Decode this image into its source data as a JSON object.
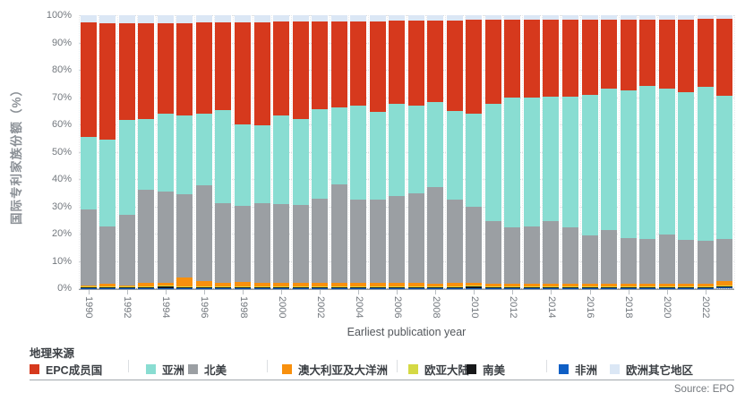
{
  "colors": {
    "epc_red": "#d6391d",
    "asia_teal": "#89ddd2",
    "north_america_gray": "#9b9fa3",
    "oceania_orange": "#f8900d",
    "eurasia_yellow": "#d5d944",
    "south_america_black": "#17181a",
    "africa_blue": "#0f5fc5",
    "other_europe_pale": "#dbe7f5",
    "axis_text": "#73787e",
    "grid": "#d9dcdf"
  },
  "y_axis": {
    "title": "国际专利家族份额（%）",
    "ticks": [
      "0%",
      "10%",
      "20%",
      "30%",
      "40%",
      "50%",
      "60%",
      "70%",
      "80%",
      "90%",
      "100%"
    ]
  },
  "x_axis": {
    "title": "Earliest publication year",
    "tick_years": [
      1990,
      1992,
      1994,
      1996,
      1998,
      2000,
      2002,
      2004,
      2006,
      2008,
      2010,
      2012,
      2014,
      2016,
      2018,
      2020,
      2022
    ]
  },
  "legend": {
    "title": "地理来源",
    "items": [
      {
        "label": "EPC成员国",
        "color": "#d6391d"
      },
      {
        "label": "亚洲",
        "color": "#89ddd2"
      },
      {
        "label": "北美",
        "color": "#9b9fa3"
      },
      {
        "label": "澳大利亚及大洋洲",
        "color": "#f8900d"
      },
      {
        "label": "欧亚大陆",
        "color": "#d5d944"
      },
      {
        "label": "南美",
        "color": "#17181a"
      },
      {
        "label": "非洲",
        "color": "#0f5fc5"
      },
      {
        "label": "欧洲其它地区",
        "color": "#dbe7f5"
      }
    ]
  },
  "source_text": "Source: EPO",
  "chart_data": {
    "type": "bar",
    "stacked": true,
    "stack_sums_to": 100,
    "title": "",
    "xlabel": "Earliest publication year",
    "ylabel": "国际专利家族份额（%）",
    "ylim": [
      0,
      100
    ],
    "grid": true,
    "legend_position": "bottom",
    "years": [
      1990,
      1991,
      1992,
      1993,
      1994,
      1995,
      1996,
      1997,
      1998,
      1999,
      2000,
      2001,
      2002,
      2003,
      2004,
      2005,
      2006,
      2007,
      2008,
      2009,
      2010,
      2011,
      2012,
      2013,
      2014,
      2015,
      2016,
      2017,
      2018,
      2019,
      2020,
      2021,
      2022,
      2023
    ],
    "series_note": "series listed in stacking order from TOP of bar to BOTTOM; values are percent shares per year",
    "series": [
      {
        "name": "欧洲其它地区",
        "color": "#dbe7f5",
        "values": [
          2.6,
          3.0,
          3.0,
          2.8,
          2.8,
          2.8,
          2.6,
          2.6,
          2.6,
          2.6,
          2.4,
          2.4,
          2.4,
          2.2,
          2.2,
          2.2,
          2.0,
          2.0,
          2.0,
          2.0,
          1.8,
          1.8,
          1.8,
          1.6,
          1.6,
          1.6,
          1.6,
          1.6,
          1.5,
          1.5,
          1.5,
          1.5,
          1.4,
          1.4
        ]
      },
      {
        "name": "EPC成员国",
        "color": "#d6391d",
        "values": [
          42.1,
          42.5,
          35.4,
          35.1,
          33.4,
          34.0,
          33.4,
          32.3,
          37.5,
          37.7,
          34.4,
          35.7,
          32.1,
          31.6,
          31.0,
          33.2,
          30.5,
          31.2,
          29.8,
          33.2,
          34.2,
          30.7,
          28.5,
          28.7,
          28.1,
          28.1,
          27.6,
          25.4,
          25.9,
          24.4,
          25.5,
          26.8,
          24.9,
          28.0
        ]
      },
      {
        "name": "亚洲",
        "color": "#89ddd2",
        "values": [
          26.5,
          31.8,
          34.7,
          26.1,
          28.4,
          28.7,
          26.4,
          33.9,
          29.7,
          28.7,
          32.5,
          31.5,
          32.8,
          28.2,
          34.4,
          32.2,
          33.8,
          32.0,
          31.3,
          32.4,
          34.2,
          43.0,
          47.5,
          47.2,
          45.6,
          48.1,
          51.4,
          51.6,
          54.2,
          56.0,
          53.4,
          54.1,
          56.4,
          52.7
        ]
      },
      {
        "name": "北美",
        "color": "#9b9fa3",
        "values": [
          27.9,
          21.0,
          25.9,
          34.0,
          33.3,
          30.7,
          34.9,
          29.1,
          28.0,
          29.0,
          28.8,
          28.4,
          30.8,
          36.2,
          30.6,
          30.5,
          31.9,
          33.0,
          35.2,
          30.6,
          27.8,
          22.9,
          20.6,
          20.9,
          23.1,
          20.6,
          17.8,
          19.8,
          16.8,
          16.5,
          18.0,
          16.0,
          15.6,
          15.2
        ]
      },
      {
        "name": "澳大利亚及大洋洲",
        "color": "#f8900d",
        "values": [
          0.4,
          1.2,
          0.5,
          1.3,
          1.2,
          3.2,
          2.0,
          1.5,
          1.6,
          1.4,
          1.2,
          1.4,
          1.3,
          1.2,
          1.2,
          1.3,
          1.2,
          1.2,
          1.1,
          1.2,
          1.0,
          1.0,
          1.0,
          1.0,
          1.0,
          1.0,
          1.0,
          1.0,
          1.0,
          1.0,
          1.0,
          1.0,
          1.1,
          1.6
        ]
      },
      {
        "name": "欧亚大陆",
        "color": "#d5d944",
        "values": [
          0.2,
          0.2,
          0.2,
          0.4,
          0.3,
          0.3,
          0.4,
          0.3,
          0.3,
          0.3,
          0.4,
          0.3,
          0.3,
          0.3,
          0.3,
          0.3,
          0.3,
          0.3,
          0.3,
          0.3,
          0.3,
          0.3,
          0.3,
          0.3,
          0.3,
          0.3,
          0.3,
          0.3,
          0.3,
          0.3,
          0.3,
          0.3,
          0.3,
          0.5
        ]
      },
      {
        "name": "南美",
        "color": "#17181a",
        "values": [
          0.2,
          0.2,
          0.2,
          0.2,
          0.5,
          0.2,
          0.2,
          0.2,
          0.2,
          0.2,
          0.2,
          0.2,
          0.2,
          0.2,
          0.2,
          0.2,
          0.2,
          0.2,
          0.2,
          0.2,
          0.6,
          0.2,
          0.2,
          0.2,
          0.2,
          0.2,
          0.2,
          0.2,
          0.2,
          0.2,
          0.2,
          0.2,
          0.2,
          0.4
        ]
      },
      {
        "name": "非洲",
        "color": "#0f5fc5",
        "values": [
          0.1,
          0.1,
          0.1,
          0.1,
          0.1,
          0.1,
          0.1,
          0.1,
          0.1,
          0.1,
          0.1,
          0.1,
          0.1,
          0.1,
          0.1,
          0.1,
          0.1,
          0.1,
          0.1,
          0.1,
          0.1,
          0.1,
          0.1,
          0.1,
          0.1,
          0.1,
          0.1,
          0.1,
          0.1,
          0.1,
          0.1,
          0.1,
          0.1,
          0.2
        ]
      }
    ]
  }
}
